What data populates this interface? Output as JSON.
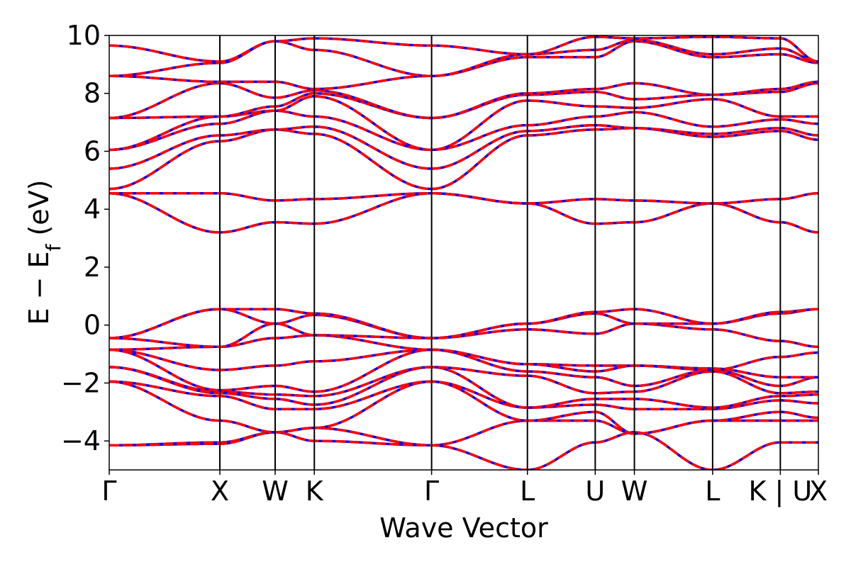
{
  "chart_data": {
    "type": "line",
    "xlabel": "Wave Vector",
    "ylabel": {
      "prefix": "E − E",
      "subscript": "f",
      "suffix": " (eV)"
    },
    "ylim": [
      -5,
      10
    ],
    "yticks": [
      -4,
      -2,
      0,
      2,
      4,
      6,
      8,
      10
    ],
    "ytick_labels": [
      "−4",
      "−2",
      "0",
      "2",
      "4",
      "6",
      "8",
      "10"
    ],
    "xlim": [
      0,
      6.41
    ],
    "kpoints": [
      {
        "label": "Γ",
        "x": 0.0
      },
      {
        "label": "X",
        "x": 1.0
      },
      {
        "label": "W",
        "x": 1.5
      },
      {
        "label": "K",
        "x": 1.854
      },
      {
        "label": "Γ",
        "x": 2.914
      },
      {
        "label": "L",
        "x": 3.78
      },
      {
        "label": "U",
        "x": 4.393
      },
      {
        "label": "W",
        "x": 4.747
      },
      {
        "label": "L",
        "x": 5.454
      },
      {
        "label": "K | U",
        "x": 6.066
      },
      {
        "label": "X",
        "x": 6.41
      }
    ],
    "colors": {
      "primary": "#ff0000",
      "secondary": "#0000ff",
      "frame": "#000000"
    },
    "series": [
      {
        "y": [
          -4.15,
          -4.05,
          -3.7,
          -3.55,
          -4.15,
          -3.3,
          -3.3,
          -3.75,
          -3.3,
          -3.3,
          -3.3
        ]
      },
      {
        "y": [
          -4.15,
          -4.1,
          -3.7,
          -4.0,
          -4.15,
          -5.0,
          -4.05,
          -3.7,
          -5.0,
          -4.05,
          -4.05
        ]
      },
      {
        "y": [
          -1.95,
          -3.3,
          -3.7,
          -3.55,
          -1.95,
          -3.3,
          -3.0,
          -3.75,
          -3.3,
          -3.0,
          -3.2
        ]
      },
      {
        "y": [
          -1.95,
          -2.45,
          -2.9,
          -2.9,
          -1.95,
          -2.85,
          -2.75,
          -2.9,
          -2.9,
          -2.6,
          -2.7
        ]
      },
      {
        "y": [
          -1.45,
          -2.35,
          -2.55,
          -2.75,
          -1.45,
          -2.85,
          -2.55,
          -2.55,
          -2.85,
          -2.45,
          -2.4
        ]
      },
      {
        "y": [
          -1.45,
          -2.3,
          -2.4,
          -2.45,
          -1.45,
          -1.75,
          -2.35,
          -2.3,
          -1.6,
          -2.35,
          -2.3
        ]
      },
      {
        "y": [
          -0.85,
          -2.25,
          -2.1,
          -2.3,
          -0.85,
          -1.6,
          -1.8,
          -2.1,
          -1.55,
          -2.1,
          -1.8
        ]
      },
      {
        "y": [
          -0.85,
          -1.55,
          -1.4,
          -1.25,
          -0.85,
          -1.35,
          -1.4,
          -1.4,
          -1.5,
          -1.8,
          -1.8
        ]
      },
      {
        "y": [
          -0.85,
          -0.75,
          -0.45,
          -0.35,
          -0.85,
          -1.35,
          -1.6,
          -1.4,
          -1.55,
          -1.1,
          -0.95
        ]
      },
      {
        "y": [
          -0.45,
          -0.75,
          0.05,
          -0.35,
          -0.45,
          -0.15,
          -0.3,
          0.05,
          -0.15,
          -0.55,
          -0.75
        ]
      },
      {
        "y": [
          -0.45,
          0.55,
          0.05,
          0.35,
          -0.45,
          0.05,
          0.4,
          0.05,
          0.05,
          0.4,
          0.55
        ]
      },
      {
        "y": [
          -0.45,
          0.55,
          0.55,
          0.4,
          -0.45,
          0.05,
          0.45,
          0.55,
          0.05,
          0.45,
          0.55
        ]
      },
      {
        "y": [
          4.55,
          3.2,
          3.55,
          3.5,
          4.55,
          4.2,
          3.5,
          3.55,
          4.2,
          3.55,
          3.2
        ]
      },
      {
        "y": [
          4.55,
          4.55,
          4.3,
          4.35,
          4.55,
          4.2,
          4.35,
          4.3,
          4.2,
          4.35,
          4.55
        ]
      },
      {
        "y": [
          4.7,
          6.35,
          6.75,
          6.6,
          4.7,
          6.55,
          6.75,
          6.8,
          6.5,
          6.7,
          6.4
        ]
      },
      {
        "y": [
          5.4,
          6.55,
          6.75,
          6.85,
          5.4,
          6.7,
          6.9,
          6.8,
          6.6,
          6.8,
          6.55
        ]
      },
      {
        "y": [
          6.05,
          6.95,
          7.4,
          7.2,
          6.05,
          6.9,
          7.2,
          7.35,
          6.85,
          7.1,
          6.95
        ]
      },
      {
        "y": [
          6.05,
          7.2,
          7.4,
          7.9,
          6.05,
          7.75,
          7.55,
          7.5,
          7.8,
          7.2,
          7.2
        ]
      },
      {
        "y": [
          7.15,
          7.2,
          7.55,
          8.0,
          7.15,
          7.95,
          8.05,
          7.8,
          7.95,
          8.05,
          8.35
        ]
      },
      {
        "y": [
          7.15,
          8.35,
          7.85,
          8.1,
          7.15,
          8.0,
          8.15,
          8.35,
          7.95,
          8.15,
          8.4
        ]
      },
      {
        "y": [
          8.6,
          8.4,
          8.4,
          8.15,
          8.6,
          9.25,
          9.25,
          9.8,
          9.25,
          9.35,
          9.05
        ]
      },
      {
        "y": [
          8.6,
          9.05,
          9.8,
          9.5,
          8.6,
          9.35,
          9.5,
          9.85,
          9.35,
          9.55,
          9.1
        ]
      },
      {
        "y": [
          9.65,
          9.1,
          9.8,
          9.9,
          9.65,
          9.35,
          9.95,
          9.9,
          9.95,
          9.9,
          9.1
        ]
      }
    ]
  }
}
